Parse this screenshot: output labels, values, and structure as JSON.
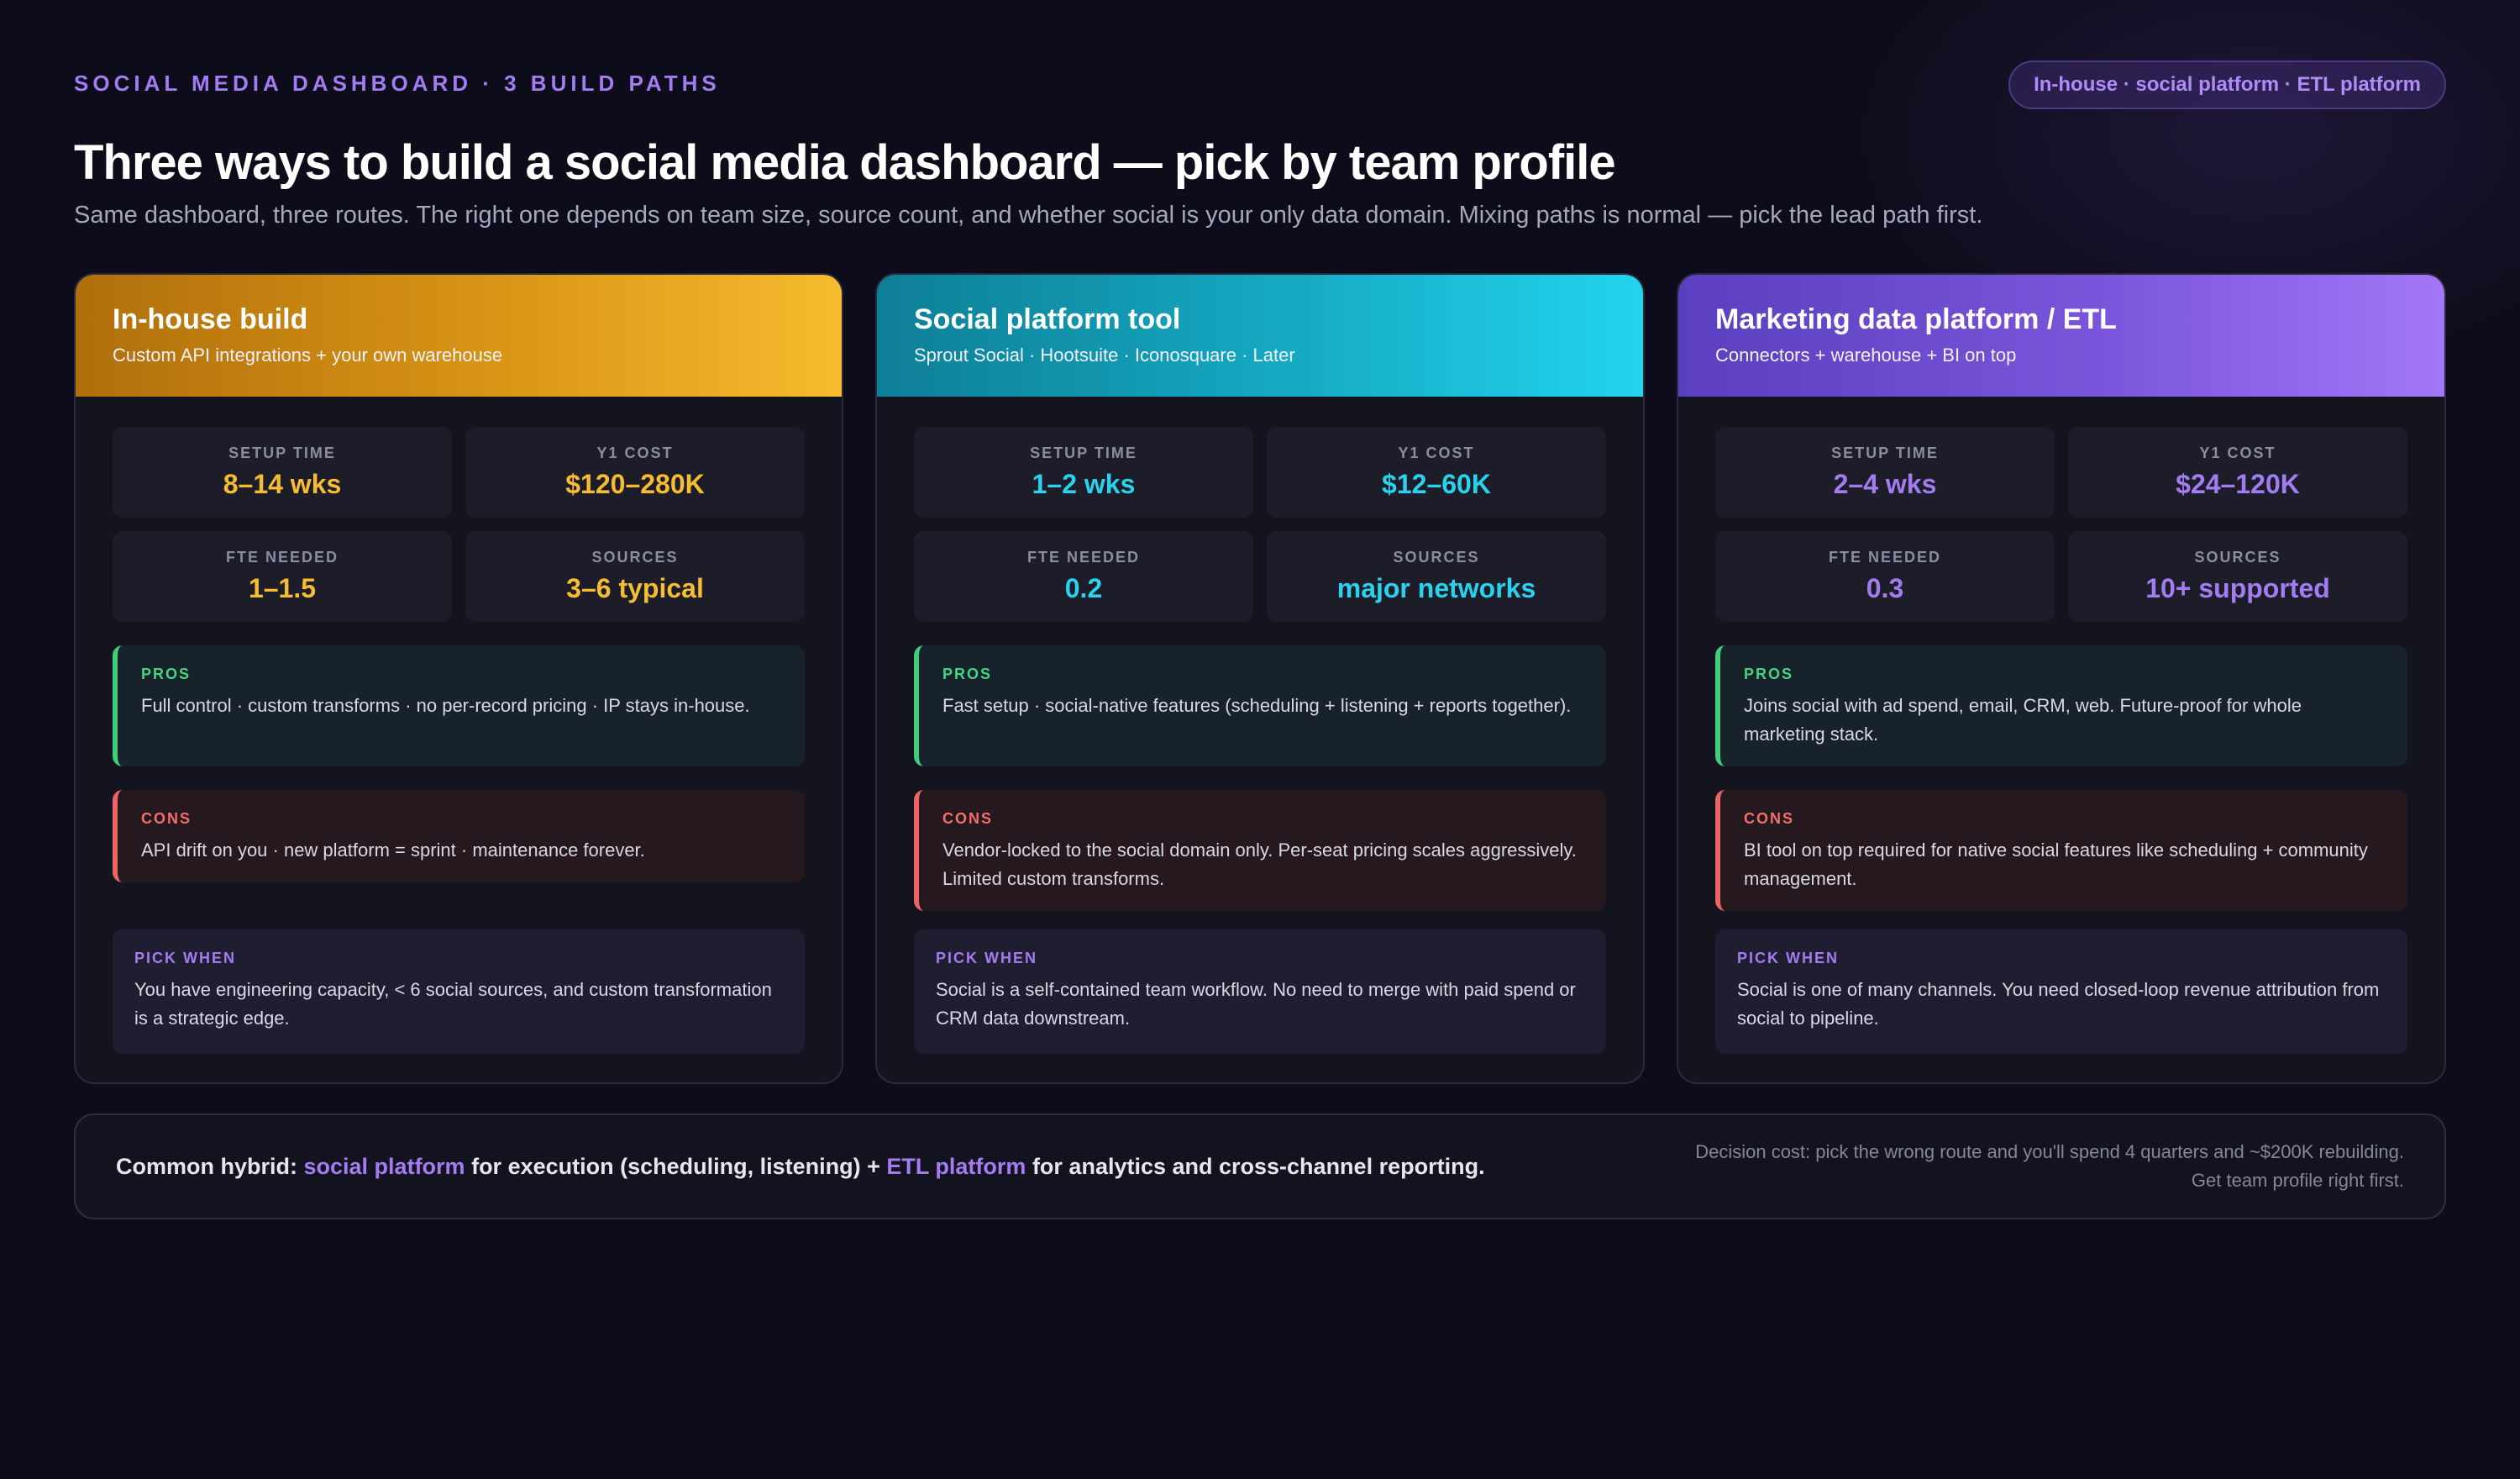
{
  "header": {
    "eyebrow": "SOCIAL MEDIA DASHBOARD · 3 BUILD PATHS",
    "pill": "In-house · social platform · ETL platform",
    "title": "Three ways to build a social media dashboard — pick by team profile",
    "subtitle": "Same dashboard, three routes. The right one depends on team size, source count, and whether social is your only data domain. Mixing paths is normal — pick the lead path first."
  },
  "labels": {
    "setup": "SETUP TIME",
    "cost": "Y1 COST",
    "fte": "FTE NEEDED",
    "sources": "SOURCES",
    "pros": "PROS",
    "cons": "CONS",
    "pick": "PICK WHEN"
  },
  "cards": [
    {
      "accent": "#f7bd30",
      "title": "In-house build",
      "subtitle": "Custom API integrations + your own warehouse",
      "setup": "8–14 wks",
      "cost": "$120–280K",
      "fte": "1–1.5",
      "sources": "3–6 typical",
      "pros": "Full control · custom transforms · no per-record pricing · IP stays in-house.",
      "cons": "API drift on you · new platform = sprint · maintenance forever.",
      "pick": "You have engineering capacity, < 6 social sources, and custom transformation is a strategic edge."
    },
    {
      "accent": "#2ad2ee",
      "title": "Social platform tool",
      "subtitle": "Sprout Social · Hootsuite · Iconosquare · Later",
      "setup": "1–2 wks",
      "cost": "$12–60K",
      "fte": "0.2",
      "sources": "major networks",
      "pros": "Fast setup · social-native features (scheduling + listening + reports together).",
      "cons": "Vendor-locked to the social domain only. Per-seat pricing scales aggressively. Limited custom transforms.",
      "pick": "Social is a self-contained team workflow. No need to merge with paid spend or CRM data downstream."
    },
    {
      "accent": "#a47cf2",
      "title": "Marketing data platform / ETL",
      "subtitle": "Connectors + warehouse + BI on top",
      "setup": "2–4 wks",
      "cost": "$24–120K",
      "fte": "0.3",
      "sources": "10+ supported",
      "pros": "Joins social with ad spend, email, CRM, web. Future-proof for whole marketing stack.",
      "cons": "BI tool on top required for native social features like scheduling + community management.",
      "pick": "Social is one of many channels. You need closed-loop revenue attribution from social to pipeline."
    }
  ],
  "footer": {
    "lead": "Common hybrid:",
    "hl1": "social platform",
    "mid": "for execution (scheduling, listening) +",
    "hl2": "ETL platform",
    "tail": "for analytics and cross-channel reporting.",
    "note1": "Decision cost: pick the wrong route and you'll spend 4 quarters and ~$200K rebuilding.",
    "note2": "Get team profile right first."
  }
}
